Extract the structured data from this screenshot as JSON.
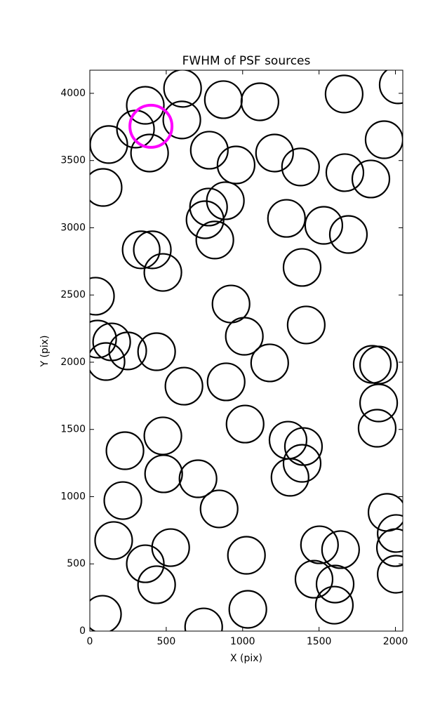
{
  "chart_data": {
    "type": "scatter",
    "title": "FWHM of PSF sources",
    "xlabel": "X (pix)",
    "ylabel": "Y (pix)",
    "xlim": [
      0,
      2048
    ],
    "ylim": [
      0,
      4172
    ],
    "xticks": [
      0,
      500,
      1000,
      1500,
      2000
    ],
    "yticks": [
      0,
      500,
      1000,
      1500,
      2000,
      2500,
      3000,
      3500,
      4000
    ],
    "series": [
      {
        "color": "#000000",
        "x": [
          363,
          607,
          874,
          1113,
          1664,
          2018,
          124,
          299,
          602,
          391,
          782,
          957,
          1209,
          1379,
          1669,
          1839,
          1926,
          87,
          777,
          887,
          754,
          818,
          1287,
          1531,
          1692,
          336,
          409,
          478,
          1389,
          37,
          924,
          1416,
          51,
          143,
          248,
          106,
          437,
          1011,
          1177,
          1848,
          1890,
          616,
          892,
          1890,
          1880,
          1016,
          230,
          478,
          1297,
          1398,
          1389,
          1310,
          483,
          708,
          846,
          216,
          1945,
          2005,
          2000,
          2005,
          156,
          529,
          363,
          437,
          1025,
          1503,
          1641,
          1467,
          1605,
          1600,
          83,
          745,
          1034
        ],
        "values": [
          3911,
          4037,
          3953,
          3937,
          3995,
          4063,
          3619,
          3734,
          3802,
          3556,
          3577,
          3467,
          3556,
          3452,
          3410,
          3363,
          3655,
          3300,
          3154,
          3201,
          3060,
          2909,
          3070,
          3018,
          2950,
          2836,
          2836,
          2668,
          2705,
          2491,
          2433,
          2277,
          2172,
          2151,
          2084,
          2005,
          2078,
          2193,
          1995,
          1984,
          1979,
          1822,
          1854,
          1697,
          1509,
          1540,
          1342,
          1452,
          1420,
          1373,
          1248,
          1144,
          1170,
          1133,
          909,
          971,
          883,
          726,
          621,
          423,
          674,
          621,
          501,
          345,
          564,
          642,
          606,
          386,
          350,
          193,
          125,
          31,
          162
        ]
      },
      {
        "color": "#ff00ff",
        "x": [
          400
        ],
        "values": [
          3755
        ]
      }
    ]
  }
}
